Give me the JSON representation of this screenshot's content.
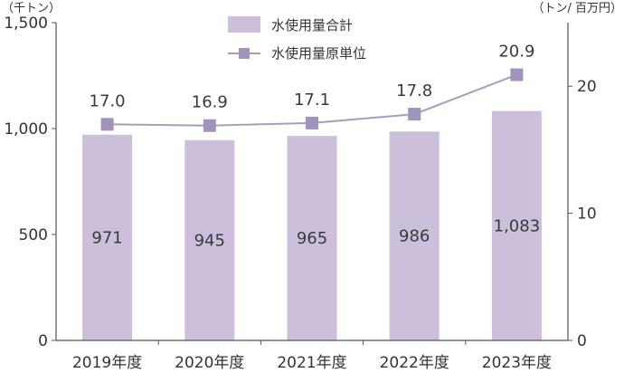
{
  "chart_data": {
    "type": "bar",
    "categories": [
      "2019年度",
      "2020年度",
      "2021年度",
      "2022年度",
      "2023年度"
    ],
    "left_unit": "（千トン）",
    "right_unit": "（トン/ 百万円）",
    "left_axis": {
      "ylim": [
        0,
        1500
      ],
      "ticks": [
        0,
        500,
        1000,
        1500
      ],
      "tick_labels": [
        "0",
        "500",
        "1,000",
        "1,500"
      ]
    },
    "right_axis": {
      "ylim": [
        0,
        25
      ],
      "ticks": [
        0,
        10,
        20
      ],
      "tick_labels": [
        "0",
        "10",
        "20"
      ]
    },
    "legend_position": "top-center",
    "series": [
      {
        "name": "水使用量合計",
        "kind": "bar",
        "axis": "left",
        "color": "#cbbfdb",
        "values": [
          971,
          945,
          965,
          986,
          1083
        ],
        "labels": [
          "971",
          "945",
          "965",
          "986",
          "1,083"
        ]
      },
      {
        "name": "水使用量原単位",
        "kind": "line",
        "axis": "right",
        "color": "#a99cc3",
        "marker_color": "#a193bd",
        "values": [
          17.0,
          16.9,
          17.1,
          17.8,
          20.9
        ],
        "labels": [
          "17.0",
          "16.9",
          "17.1",
          "17.8",
          "20.9"
        ]
      }
    ],
    "grid": false
  }
}
